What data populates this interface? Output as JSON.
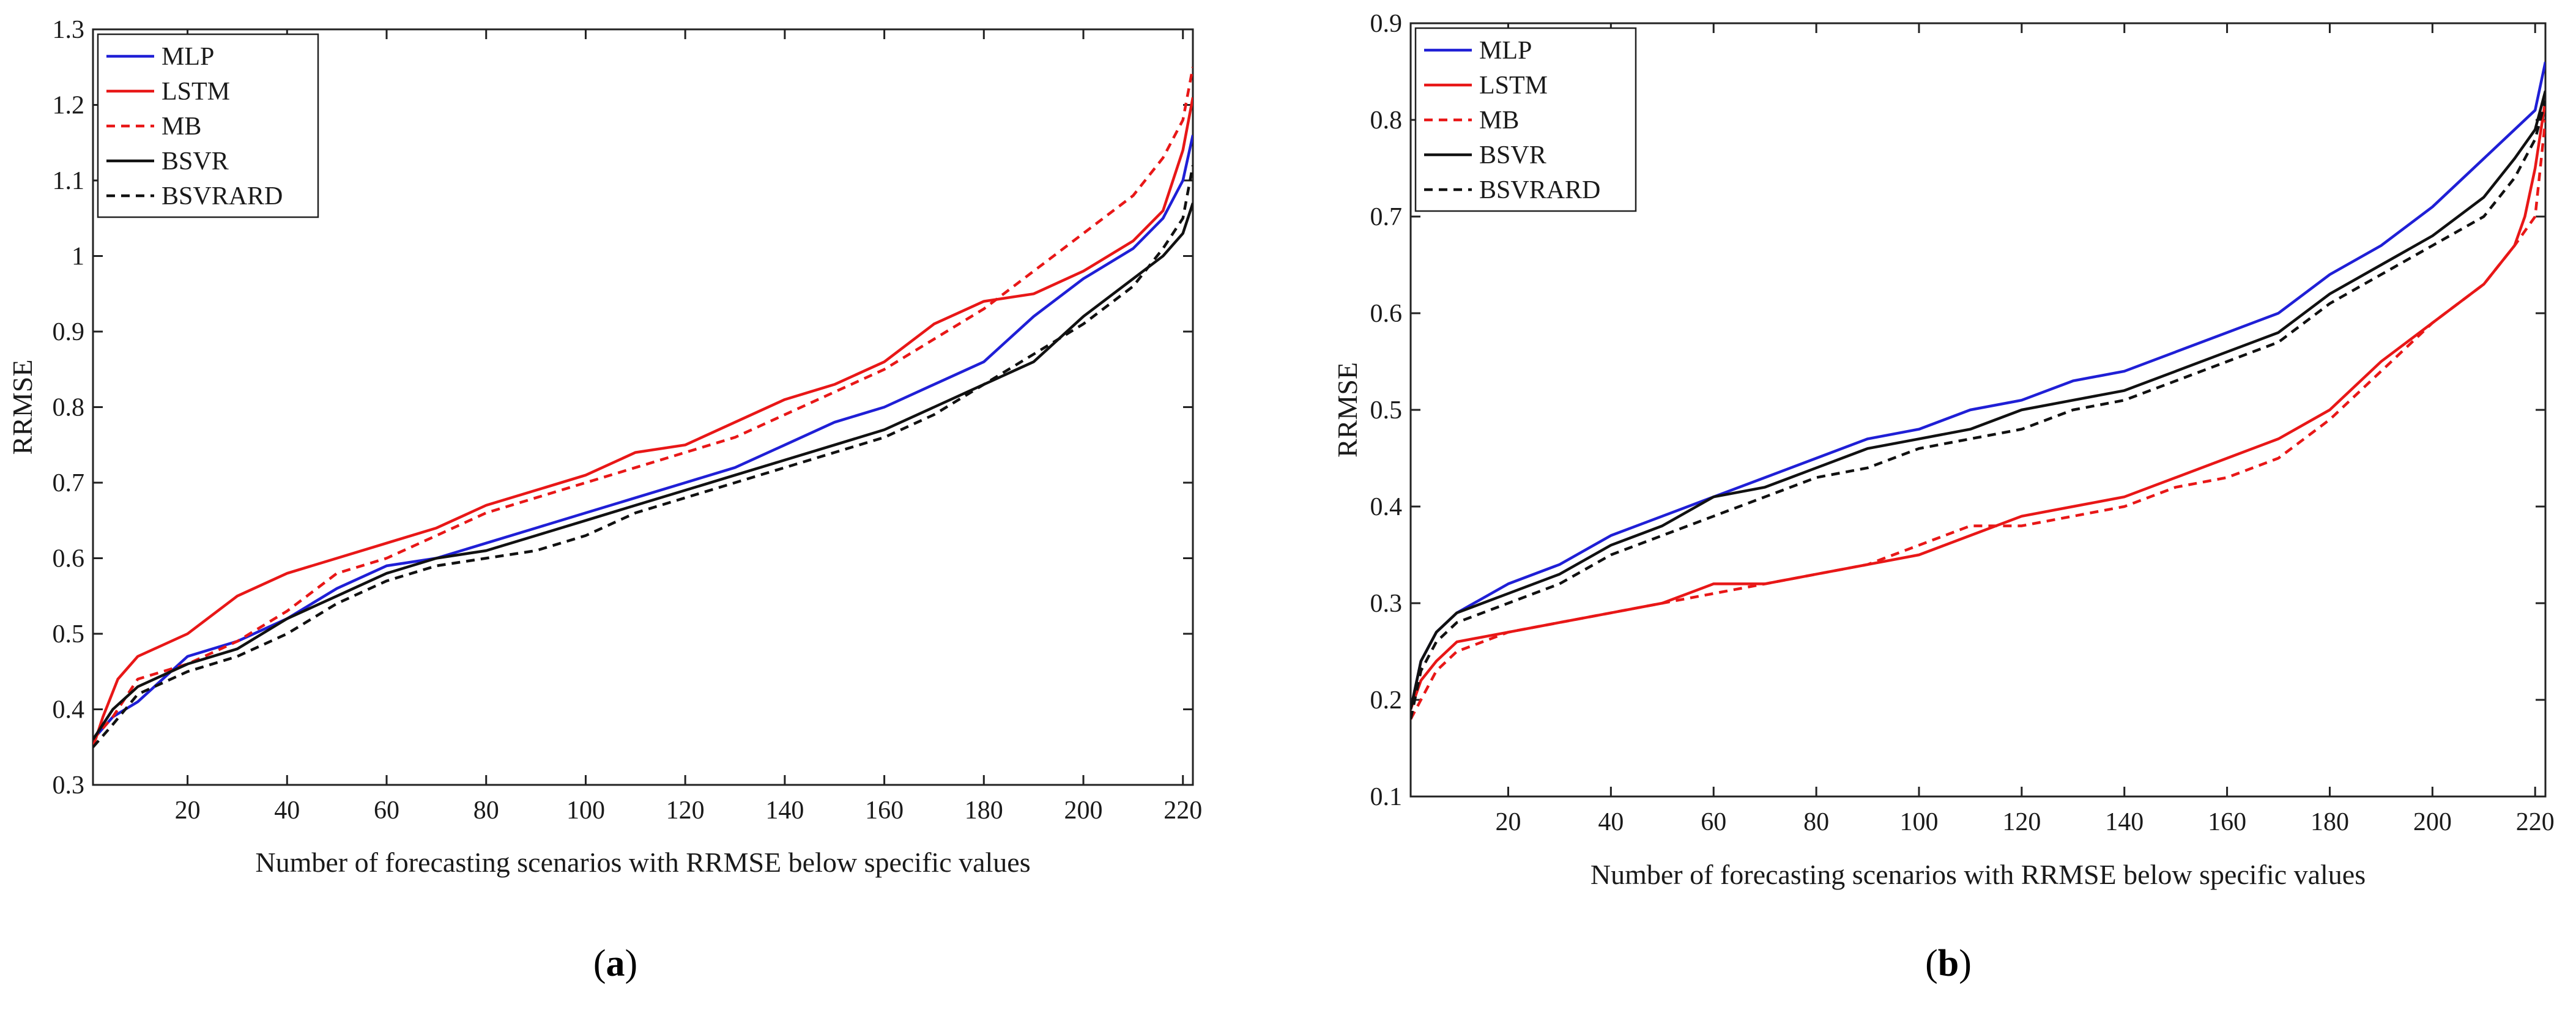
{
  "colors": {
    "MLP": "#1f1fd6",
    "LSTM": "#e81717",
    "MB": "#e81717",
    "BSVR": "#111111",
    "BSVRARD": "#111111"
  },
  "chart_data": [
    {
      "type": "line",
      "panel_label": "(a)",
      "panel_letter": "a",
      "xlabel": "Number of forecasting scenarios with RRMSE below specific values",
      "ylabel": "RRMSE",
      "xlim": [
        1,
        222
      ],
      "ylim": [
        0.3,
        1.3
      ],
      "xticks": [
        20,
        40,
        60,
        80,
        100,
        120,
        140,
        160,
        180,
        200,
        220
      ],
      "yticks": [
        0.3,
        0.4,
        0.5,
        0.6,
        0.7,
        0.8,
        0.9,
        1,
        1.1,
        1.2,
        1.3
      ],
      "ytick_labels": [
        "0.3",
        "0.4",
        "0.5",
        "0.6",
        "0.7",
        "0.8",
        "0.9",
        "1",
        "1.1",
        "1.2",
        "1.3"
      ],
      "legend_position": "top-left",
      "series": [
        {
          "name": "MLP",
          "style": "solid",
          "x": [
            1,
            5,
            10,
            20,
            30,
            40,
            50,
            60,
            70,
            80,
            90,
            100,
            110,
            120,
            130,
            140,
            150,
            160,
            170,
            180,
            190,
            200,
            210,
            216,
            220,
            222
          ],
          "y": [
            0.36,
            0.39,
            0.41,
            0.47,
            0.49,
            0.52,
            0.56,
            0.59,
            0.6,
            0.62,
            0.64,
            0.66,
            0.68,
            0.7,
            0.72,
            0.75,
            0.78,
            0.8,
            0.83,
            0.86,
            0.92,
            0.97,
            1.01,
            1.05,
            1.1,
            1.16
          ]
        },
        {
          "name": "LSTM",
          "style": "solid",
          "x": [
            1,
            3,
            6,
            10,
            20,
            30,
            40,
            50,
            60,
            70,
            80,
            90,
            100,
            110,
            120,
            130,
            140,
            150,
            160,
            170,
            180,
            190,
            200,
            210,
            216,
            220,
            222
          ],
          "y": [
            0.35,
            0.39,
            0.44,
            0.47,
            0.5,
            0.55,
            0.58,
            0.6,
            0.62,
            0.64,
            0.67,
            0.69,
            0.71,
            0.74,
            0.75,
            0.78,
            0.81,
            0.83,
            0.86,
            0.91,
            0.94,
            0.95,
            0.98,
            1.02,
            1.06,
            1.14,
            1.21
          ]
        },
        {
          "name": "MB",
          "style": "dashed",
          "x": [
            1,
            5,
            10,
            20,
            30,
            40,
            50,
            60,
            70,
            80,
            90,
            100,
            110,
            120,
            130,
            140,
            150,
            160,
            170,
            180,
            190,
            200,
            210,
            216,
            220,
            222
          ],
          "y": [
            0.36,
            0.39,
            0.44,
            0.46,
            0.49,
            0.53,
            0.58,
            0.6,
            0.63,
            0.66,
            0.68,
            0.7,
            0.72,
            0.74,
            0.76,
            0.79,
            0.82,
            0.85,
            0.89,
            0.93,
            0.98,
            1.03,
            1.08,
            1.13,
            1.18,
            1.25
          ]
        },
        {
          "name": "BSVR",
          "style": "solid",
          "x": [
            1,
            5,
            10,
            20,
            30,
            40,
            50,
            60,
            70,
            80,
            90,
            100,
            110,
            120,
            130,
            140,
            150,
            160,
            170,
            180,
            190,
            200,
            210,
            216,
            220,
            222
          ],
          "y": [
            0.36,
            0.4,
            0.43,
            0.46,
            0.48,
            0.52,
            0.55,
            0.58,
            0.6,
            0.61,
            0.63,
            0.65,
            0.67,
            0.69,
            0.71,
            0.73,
            0.75,
            0.77,
            0.8,
            0.83,
            0.86,
            0.92,
            0.97,
            1.0,
            1.03,
            1.07
          ]
        },
        {
          "name": "BSVRARD",
          "style": "dashed",
          "x": [
            1,
            5,
            10,
            20,
            30,
            40,
            50,
            60,
            70,
            80,
            90,
            100,
            110,
            120,
            130,
            140,
            150,
            160,
            170,
            180,
            190,
            200,
            210,
            216,
            220,
            222
          ],
          "y": [
            0.35,
            0.38,
            0.42,
            0.45,
            0.47,
            0.5,
            0.54,
            0.57,
            0.59,
            0.6,
            0.61,
            0.63,
            0.66,
            0.68,
            0.7,
            0.72,
            0.74,
            0.76,
            0.79,
            0.83,
            0.87,
            0.91,
            0.96,
            1.01,
            1.05,
            1.12
          ]
        }
      ]
    },
    {
      "type": "line",
      "panel_label": "(b)",
      "panel_letter": "b",
      "xlabel": "Number of forecasting scenarios with RRMSE below specific values",
      "ylabel": "RRMSE",
      "xlim": [
        1,
        222
      ],
      "ylim": [
        0.1,
        0.9
      ],
      "xticks": [
        20,
        40,
        60,
        80,
        100,
        120,
        140,
        160,
        180,
        200,
        220
      ],
      "yticks": [
        0.1,
        0.2,
        0.3,
        0.4,
        0.5,
        0.6,
        0.7,
        0.8,
        0.9
      ],
      "ytick_labels": [
        "0.1",
        "0.2",
        "0.3",
        "0.4",
        "0.5",
        "0.6",
        "0.7",
        "0.8",
        "0.9"
      ],
      "legend_position": "top-left",
      "series": [
        {
          "name": "MLP",
          "style": "solid",
          "x": [
            1,
            3,
            6,
            10,
            20,
            30,
            40,
            50,
            60,
            70,
            80,
            90,
            100,
            110,
            120,
            130,
            140,
            150,
            160,
            170,
            180,
            190,
            200,
            210,
            216,
            220,
            222
          ],
          "y": [
            0.19,
            0.24,
            0.27,
            0.29,
            0.32,
            0.34,
            0.37,
            0.39,
            0.41,
            0.43,
            0.45,
            0.47,
            0.48,
            0.5,
            0.51,
            0.53,
            0.54,
            0.56,
            0.58,
            0.6,
            0.64,
            0.67,
            0.71,
            0.76,
            0.79,
            0.81,
            0.86
          ]
        },
        {
          "name": "LSTM",
          "style": "solid",
          "x": [
            1,
            3,
            6,
            10,
            20,
            30,
            40,
            50,
            60,
            70,
            80,
            90,
            100,
            110,
            120,
            130,
            140,
            150,
            160,
            170,
            180,
            190,
            200,
            210,
            216,
            218,
            220,
            222
          ],
          "y": [
            0.19,
            0.22,
            0.24,
            0.26,
            0.27,
            0.28,
            0.29,
            0.3,
            0.32,
            0.32,
            0.33,
            0.34,
            0.35,
            0.37,
            0.39,
            0.4,
            0.41,
            0.43,
            0.45,
            0.47,
            0.5,
            0.55,
            0.59,
            0.63,
            0.67,
            0.7,
            0.75,
            0.82
          ]
        },
        {
          "name": "MB",
          "style": "dashed",
          "x": [
            1,
            3,
            6,
            10,
            20,
            30,
            40,
            50,
            60,
            70,
            80,
            90,
            100,
            110,
            120,
            130,
            140,
            150,
            160,
            170,
            180,
            190,
            200,
            210,
            216,
            220,
            222
          ],
          "y": [
            0.18,
            0.2,
            0.23,
            0.25,
            0.27,
            0.28,
            0.29,
            0.3,
            0.31,
            0.32,
            0.33,
            0.34,
            0.36,
            0.38,
            0.38,
            0.39,
            0.4,
            0.42,
            0.43,
            0.45,
            0.49,
            0.54,
            0.59,
            0.63,
            0.67,
            0.7,
            0.8
          ]
        },
        {
          "name": "BSVR",
          "style": "solid",
          "x": [
            1,
            3,
            6,
            10,
            20,
            30,
            40,
            50,
            60,
            70,
            80,
            90,
            100,
            110,
            120,
            130,
            140,
            150,
            160,
            170,
            180,
            190,
            200,
            210,
            216,
            220,
            222
          ],
          "y": [
            0.19,
            0.24,
            0.27,
            0.29,
            0.31,
            0.33,
            0.36,
            0.38,
            0.41,
            0.42,
            0.44,
            0.46,
            0.47,
            0.48,
            0.5,
            0.51,
            0.52,
            0.54,
            0.56,
            0.58,
            0.62,
            0.65,
            0.68,
            0.72,
            0.76,
            0.79,
            0.83
          ]
        },
        {
          "name": "BSVRARD",
          "style": "dashed",
          "x": [
            1,
            3,
            6,
            10,
            20,
            30,
            40,
            50,
            60,
            70,
            80,
            90,
            100,
            110,
            120,
            130,
            140,
            150,
            160,
            170,
            180,
            190,
            200,
            210,
            216,
            220,
            222
          ],
          "y": [
            0.18,
            0.23,
            0.26,
            0.28,
            0.3,
            0.32,
            0.35,
            0.37,
            0.39,
            0.41,
            0.43,
            0.44,
            0.46,
            0.47,
            0.48,
            0.5,
            0.51,
            0.53,
            0.55,
            0.57,
            0.61,
            0.64,
            0.67,
            0.7,
            0.74,
            0.78,
            0.82
          ]
        }
      ]
    }
  ]
}
